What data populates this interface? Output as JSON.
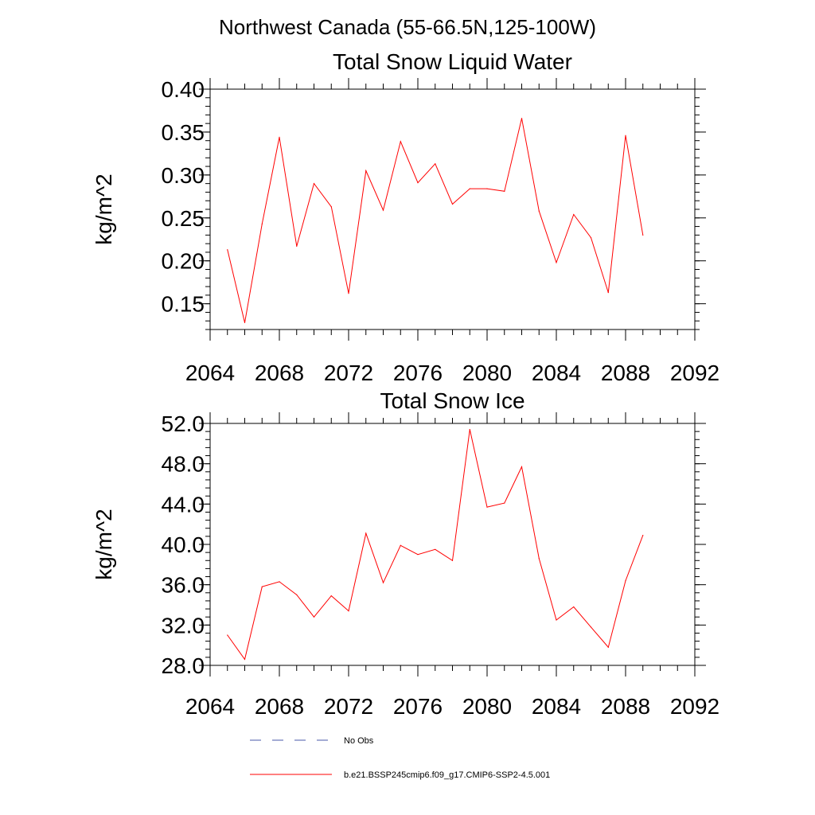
{
  "figure": {
    "title": "Northwest Canada (55-66.5N,125-100W)"
  },
  "chart_data": [
    {
      "type": "line",
      "title": "Total Snow Liquid Water",
      "xlabel": "",
      "ylabel": "kg/m^2",
      "xlim": [
        2064,
        2092
      ],
      "ylim": [
        0.12,
        0.4
      ],
      "x_ticks": [
        "2064",
        "2068",
        "2072",
        "2076",
        "2080",
        "2084",
        "2088",
        "2092"
      ],
      "y_ticks": [
        "0.15",
        "0.20",
        "0.25",
        "0.30",
        "0.35",
        "0.40"
      ],
      "grid": false,
      "series": [
        {
          "name": "b.e21.BSSP245cmip6.f09_g17.CMIP6-SSP2-4.5.001",
          "color": "#ff0000",
          "x": [
            2065,
            2066,
            2067,
            2068,
            2069,
            2070,
            2071,
            2072,
            2073,
            2074,
            2075,
            2076,
            2077,
            2078,
            2079,
            2080,
            2081,
            2082,
            2083,
            2084,
            2085,
            2086,
            2087,
            2088,
            2089
          ],
          "values": [
            0.213,
            0.128,
            0.243,
            0.344,
            0.217,
            0.29,
            0.263,
            0.162,
            0.305,
            0.259,
            0.339,
            0.291,
            0.313,
            0.266,
            0.284,
            0.284,
            0.281,
            0.366,
            0.258,
            0.198,
            0.254,
            0.227,
            0.163,
            0.346,
            0.23
          ]
        }
      ]
    },
    {
      "type": "line",
      "title": "Total Snow Ice",
      "xlabel": "",
      "ylabel": "kg/m^2",
      "xlim": [
        2064,
        2092
      ],
      "ylim": [
        28.0,
        52.0
      ],
      "x_ticks": [
        "2064",
        "2068",
        "2072",
        "2076",
        "2080",
        "2084",
        "2088",
        "2092"
      ],
      "y_ticks": [
        "28.0",
        "32.0",
        "36.0",
        "40.0",
        "44.0",
        "48.0",
        "52.0"
      ],
      "grid": false,
      "series": [
        {
          "name": "b.e21.BSSP245cmip6.f09_g17.CMIP6-SSP2-4.5.001",
          "color": "#ff0000",
          "x": [
            2065,
            2066,
            2067,
            2068,
            2069,
            2070,
            2071,
            2072,
            2073,
            2074,
            2075,
            2076,
            2077,
            2078,
            2079,
            2080,
            2081,
            2082,
            2083,
            2084,
            2085,
            2086,
            2087,
            2088,
            2089
          ],
          "values": [
            31.0,
            28.6,
            35.8,
            36.3,
            35.0,
            32.8,
            34.9,
            33.4,
            41.1,
            36.2,
            39.9,
            39.0,
            39.5,
            38.4,
            51.4,
            43.7,
            44.1,
            47.7,
            38.6,
            32.5,
            33.8,
            31.8,
            29.8,
            36.4,
            40.9
          ]
        }
      ]
    }
  ],
  "legend": {
    "placement": "bottom",
    "entries": [
      {
        "label": "No Obs",
        "color": "#4a5aa8",
        "style": "dashed"
      },
      {
        "label": "b.e21.BSSP245cmip6.f09_g17.CMIP6-SSP2-4.5.001",
        "color": "#ff0000",
        "style": "solid"
      }
    ]
  }
}
